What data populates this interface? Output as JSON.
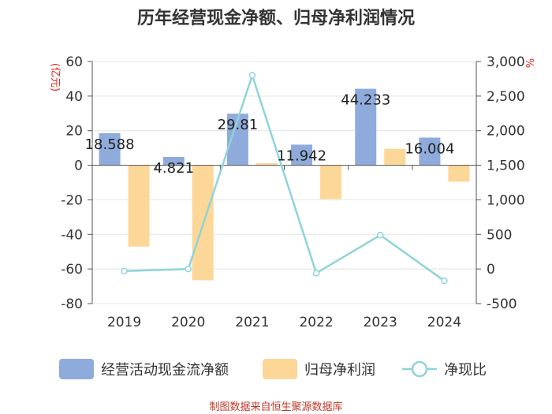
{
  "chart_data": {
    "type": "bar",
    "title": "历年经营现金净额、归母净利润情况",
    "y_left_unit": "(亿元)",
    "y_right_unit": "%",
    "categories": [
      "2019",
      "2020",
      "2021",
      "2022",
      "2023",
      "2024"
    ],
    "ylim_left": [
      -80,
      60
    ],
    "yticks_left": [
      "60",
      "40",
      "20",
      "0",
      "-20",
      "-40",
      "-60",
      "-80"
    ],
    "ylim_right": [
      -500,
      3000
    ],
    "yticks_right": [
      "3,000",
      "2,500",
      "2,000",
      "1,500",
      "1,000",
      "500",
      "0",
      "-500"
    ],
    "series": [
      {
        "name": "经营活动现金流净额",
        "kind": "bar",
        "axis": "left",
        "color": "#8fabdc",
        "values": [
          18.588,
          4.821,
          29.81,
          11.942,
          44.233,
          16.004
        ],
        "labels": [
          "18.588",
          "4.821",
          "29.81",
          "11.942",
          "44.233",
          "16.004"
        ]
      },
      {
        "name": "归母净利润",
        "kind": "bar",
        "axis": "left",
        "color": "#fdd797",
        "values": [
          -47,
          -66.5,
          1.2,
          -19.5,
          9.5,
          -9.5
        ]
      },
      {
        "name": "净现比",
        "kind": "line",
        "axis": "right",
        "color": "#8fd4d8",
        "values": [
          -30,
          0,
          2800,
          -60,
          490,
          -170
        ]
      }
    ],
    "legend_position": "bottom",
    "grid": true
  },
  "footer": {
    "source": "制图数据来自恒生聚源数据库"
  }
}
